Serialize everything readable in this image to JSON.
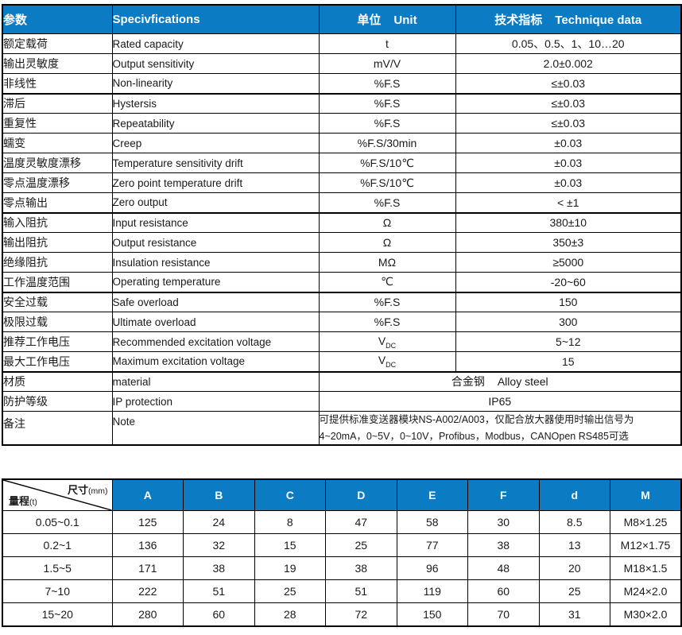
{
  "colors": {
    "header_blue": "#0b7cc4",
    "border": "#000000",
    "text": "#1a1a1a"
  },
  "spec_table": {
    "headers": {
      "param": "参数",
      "spec": "Specivfications",
      "unit_cn": "单位",
      "unit_en": "Unit",
      "data_cn": "技术指标",
      "data_en": "Technique data"
    },
    "rows": [
      {
        "p": "额定载荷",
        "s": "Rated capacity",
        "u": "t",
        "v": "0.05、0.5、1、10…20"
      },
      {
        "p": "输出灵敏度",
        "s": "Output sensitivity",
        "u": "mV/V",
        "v": "2.0±0.002"
      },
      {
        "p": "非线性",
        "s": "Non-linearity",
        "u": "%F.S",
        "v": "≤±0.03",
        "thick_below": true
      },
      {
        "p": "滞后",
        "s": "Hystersis",
        "u": "%F.S",
        "v": "≤±0.03"
      },
      {
        "p": "重复性",
        "s": "Repeatability",
        "u": "%F.S",
        "v": "≤±0.03"
      },
      {
        "p": "蠕变",
        "s": "Creep",
        "u": "%F.S/30min",
        "v": "±0.03"
      },
      {
        "p": "温度灵敏度漂移",
        "s": "Temperature sensitivity drift",
        "u": "%F.S/10℃",
        "v": "±0.03"
      },
      {
        "p": "零点温度漂移",
        "s": "Zero point temperature drift",
        "u": "%F.S/10℃",
        "v": "±0.03"
      },
      {
        "p": "零点输出",
        "s": "Zero output",
        "u": "%F.S",
        "v": "< ±1",
        "thick_below": true
      },
      {
        "p": "输入阻抗",
        "s": "Input resistance",
        "u": "Ω",
        "v": "380±10"
      },
      {
        "p": "输出阻抗",
        "s": "Output resistance",
        "u": "Ω",
        "v": "350±3"
      },
      {
        "p": "绝缘阻抗",
        "s": "Insulation resistance",
        "u": "MΩ",
        "v": "≥5000"
      },
      {
        "p": "工作温度范围",
        "s": "Operating temperature",
        "u": "℃",
        "v": "-20~60",
        "thick_below": true
      },
      {
        "p": "安全过载",
        "s": "Safe overload",
        "u": "%F.S",
        "v": "150"
      },
      {
        "p": "极限过载",
        "s": "Ultimate overload",
        "u": "%F.S",
        "v": "300"
      },
      {
        "p": "推荐工作电压",
        "s": "Recommended excitation voltage",
        "u": "V",
        "u_sub": "DC",
        "v": "5~12"
      },
      {
        "p": "最大工作电压",
        "s": "Maximum excitation voltage",
        "u": "V",
        "u_sub": "DC",
        "v": "15",
        "thick_below": true
      },
      {
        "p": "材质",
        "s": "material",
        "merged_cn": "合金钢",
        "merged_en": "Alloy steel"
      },
      {
        "p": "防护等级",
        "s": "IP protection",
        "merged": "IP65"
      },
      {
        "p": "备注",
        "s": "Note",
        "merged_lines": [
          "可提供标准变送器模块NS-A002/A003，仅配合放大器使用时输出信号为",
          "4~20mA，0~5V，0~10V，Profibus，Modbus，CANOpen RS485可选"
        ]
      }
    ]
  },
  "dim_table": {
    "corner": {
      "size_label": "尺寸",
      "size_unit": "(mm)",
      "range_label": "量程",
      "range_unit": "(t)"
    },
    "columns": [
      "A",
      "B",
      "C",
      "D",
      "E",
      "F",
      "d",
      "M"
    ],
    "rows": [
      {
        "range": "0.05~0.1",
        "values": [
          "125",
          "24",
          "8",
          "47",
          "58",
          "30",
          "8.5",
          "M8×1.25"
        ]
      },
      {
        "range": "0.2~1",
        "values": [
          "136",
          "32",
          "15",
          "25",
          "77",
          "38",
          "13",
          "M12×1.75"
        ]
      },
      {
        "range": "1.5~5",
        "values": [
          "171",
          "38",
          "19",
          "38",
          "96",
          "48",
          "20",
          "M18×1.5"
        ]
      },
      {
        "range": "7~10",
        "values": [
          "222",
          "51",
          "25",
          "51",
          "119",
          "60",
          "25",
          "M24×2.0"
        ]
      },
      {
        "range": "15~20",
        "values": [
          "280",
          "60",
          "28",
          "72",
          "150",
          "70",
          "31",
          "M30×2.0"
        ]
      }
    ]
  }
}
